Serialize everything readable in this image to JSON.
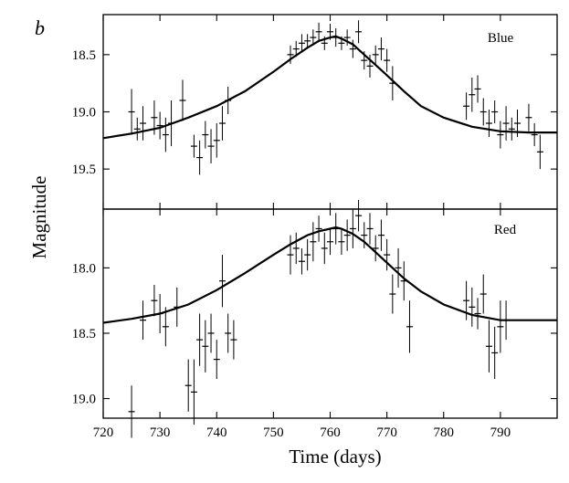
{
  "figure": {
    "panel_letter": "b",
    "ylabel": "Magnitude",
    "xlabel": "Time (days)"
  },
  "chart_data": [
    {
      "type": "scatter",
      "series_label": "Blue",
      "xlim": [
        720,
        800
      ],
      "ylim": [
        19.85,
        18.15
      ],
      "y_inverted": true,
      "x_ticks": [
        720,
        730,
        740,
        750,
        760,
        770,
        780,
        790
      ],
      "x_tick_labels": [
        "720",
        "730",
        "740",
        "750",
        "760",
        "770",
        "780",
        "790"
      ],
      "y_ticks": [
        18.5,
        19.0,
        19.5
      ],
      "y_tick_labels": [
        "18.5",
        "19.0",
        "19.5"
      ],
      "fit_curve": {
        "x": [
          720,
          725,
          730,
          735,
          740,
          745,
          750,
          753,
          756,
          758,
          760,
          761,
          762,
          764,
          766,
          768,
          770,
          773,
          776,
          780,
          785,
          790,
          795,
          800
        ],
        "y": [
          19.23,
          19.19,
          19.14,
          19.05,
          18.95,
          18.82,
          18.65,
          18.54,
          18.44,
          18.38,
          18.35,
          18.34,
          18.36,
          18.41,
          18.5,
          18.59,
          18.68,
          18.82,
          18.95,
          19.05,
          19.13,
          19.17,
          19.18,
          19.18
        ]
      },
      "points": [
        {
          "x": 725,
          "y": 19.0,
          "err": 0.2
        },
        {
          "x": 726,
          "y": 19.15,
          "err": 0.1
        },
        {
          "x": 727,
          "y": 19.1,
          "err": 0.15
        },
        {
          "x": 729,
          "y": 19.05,
          "err": 0.15
        },
        {
          "x": 730,
          "y": 19.12,
          "err": 0.12
        },
        {
          "x": 731,
          "y": 19.2,
          "err": 0.15
        },
        {
          "x": 732,
          "y": 19.1,
          "err": 0.2
        },
        {
          "x": 734,
          "y": 18.9,
          "err": 0.18
        },
        {
          "x": 736,
          "y": 19.3,
          "err": 0.1
        },
        {
          "x": 737,
          "y": 19.4,
          "err": 0.15
        },
        {
          "x": 738,
          "y": 19.2,
          "err": 0.12
        },
        {
          "x": 739,
          "y": 19.3,
          "err": 0.15
        },
        {
          "x": 740,
          "y": 19.25,
          "err": 0.15
        },
        {
          "x": 741,
          "y": 19.1,
          "err": 0.15
        },
        {
          "x": 742,
          "y": 18.9,
          "err": 0.12
        },
        {
          "x": 753,
          "y": 18.5,
          "err": 0.08
        },
        {
          "x": 754,
          "y": 18.45,
          "err": 0.07
        },
        {
          "x": 755,
          "y": 18.4,
          "err": 0.08
        },
        {
          "x": 756,
          "y": 18.38,
          "err": 0.06
        },
        {
          "x": 757,
          "y": 18.35,
          "err": 0.07
        },
        {
          "x": 758,
          "y": 18.3,
          "err": 0.08
        },
        {
          "x": 759,
          "y": 18.4,
          "err": 0.06
        },
        {
          "x": 760,
          "y": 18.3,
          "err": 0.07
        },
        {
          "x": 761,
          "y": 18.35,
          "err": 0.08
        },
        {
          "x": 762,
          "y": 18.4,
          "err": 0.06
        },
        {
          "x": 763,
          "y": 18.35,
          "err": 0.07
        },
        {
          "x": 764,
          "y": 18.45,
          "err": 0.08
        },
        {
          "x": 765,
          "y": 18.3,
          "err": 0.1
        },
        {
          "x": 766,
          "y": 18.55,
          "err": 0.08
        },
        {
          "x": 767,
          "y": 18.6,
          "err": 0.1
        },
        {
          "x": 768,
          "y": 18.5,
          "err": 0.08
        },
        {
          "x": 769,
          "y": 18.45,
          "err": 0.1
        },
        {
          "x": 770,
          "y": 18.55,
          "err": 0.1
        },
        {
          "x": 771,
          "y": 18.75,
          "err": 0.15
        },
        {
          "x": 784,
          "y": 18.95,
          "err": 0.12
        },
        {
          "x": 785,
          "y": 18.85,
          "err": 0.15
        },
        {
          "x": 786,
          "y": 18.8,
          "err": 0.12
        },
        {
          "x": 787,
          "y": 19.0,
          "err": 0.12
        },
        {
          "x": 788,
          "y": 19.1,
          "err": 0.12
        },
        {
          "x": 789,
          "y": 19.0,
          "err": 0.1
        },
        {
          "x": 790,
          "y": 19.2,
          "err": 0.12
        },
        {
          "x": 791,
          "y": 19.1,
          "err": 0.15
        },
        {
          "x": 792,
          "y": 19.15,
          "err": 0.1
        },
        {
          "x": 793,
          "y": 19.1,
          "err": 0.12
        },
        {
          "x": 795,
          "y": 19.05,
          "err": 0.12
        },
        {
          "x": 796,
          "y": 19.2,
          "err": 0.1
        },
        {
          "x": 797,
          "y": 19.35,
          "err": 0.15
        }
      ]
    },
    {
      "type": "scatter",
      "series_label": "Red",
      "xlim": [
        720,
        800
      ],
      "ylim": [
        19.15,
        17.55
      ],
      "y_inverted": true,
      "x_ticks": [
        720,
        730,
        740,
        750,
        760,
        770,
        780,
        790
      ],
      "x_tick_labels": [
        "720",
        "730",
        "740",
        "750",
        "760",
        "770",
        "780",
        "790"
      ],
      "y_ticks": [
        18.0,
        18.5,
        19.0
      ],
      "y_tick_labels": [
        "18.0",
        "18.5",
        "19.0"
      ],
      "fit_curve": {
        "x": [
          720,
          725,
          730,
          735,
          740,
          745,
          750,
          753,
          756,
          758,
          760,
          761,
          762,
          764,
          766,
          768,
          770,
          773,
          776,
          780,
          785,
          790,
          795,
          800
        ],
        "y": [
          18.42,
          18.39,
          18.35,
          18.28,
          18.17,
          18.04,
          17.9,
          17.82,
          17.75,
          17.72,
          17.7,
          17.69,
          17.7,
          17.74,
          17.8,
          17.88,
          17.96,
          18.08,
          18.18,
          18.28,
          18.36,
          18.4,
          18.4,
          18.4
        ]
      },
      "points": [
        {
          "x": 725,
          "y": 19.1,
          "err": 0.2
        },
        {
          "x": 727,
          "y": 18.4,
          "err": 0.15
        },
        {
          "x": 729,
          "y": 18.25,
          "err": 0.12
        },
        {
          "x": 730,
          "y": 18.35,
          "err": 0.15
        },
        {
          "x": 731,
          "y": 18.45,
          "err": 0.15
        },
        {
          "x": 733,
          "y": 18.3,
          "err": 0.15
        },
        {
          "x": 735,
          "y": 18.9,
          "err": 0.2
        },
        {
          "x": 736,
          "y": 18.95,
          "err": 0.25
        },
        {
          "x": 737,
          "y": 18.55,
          "err": 0.2
        },
        {
          "x": 738,
          "y": 18.6,
          "err": 0.2
        },
        {
          "x": 739,
          "y": 18.5,
          "err": 0.15
        },
        {
          "x": 740,
          "y": 18.7,
          "err": 0.15
        },
        {
          "x": 741,
          "y": 18.1,
          "err": 0.2
        },
        {
          "x": 742,
          "y": 18.5,
          "err": 0.15
        },
        {
          "x": 743,
          "y": 18.55,
          "err": 0.15
        },
        {
          "x": 753,
          "y": 17.9,
          "err": 0.15
        },
        {
          "x": 754,
          "y": 17.85,
          "err": 0.12
        },
        {
          "x": 755,
          "y": 17.95,
          "err": 0.1
        },
        {
          "x": 756,
          "y": 17.9,
          "err": 0.12
        },
        {
          "x": 757,
          "y": 17.8,
          "err": 0.15
        },
        {
          "x": 758,
          "y": 17.7,
          "err": 0.1
        },
        {
          "x": 759,
          "y": 17.85,
          "err": 0.12
        },
        {
          "x": 760,
          "y": 17.8,
          "err": 0.1
        },
        {
          "x": 761,
          "y": 17.7,
          "err": 0.12
        },
        {
          "x": 762,
          "y": 17.8,
          "err": 0.1
        },
        {
          "x": 763,
          "y": 17.75,
          "err": 0.12
        },
        {
          "x": 764,
          "y": 17.7,
          "err": 0.15
        },
        {
          "x": 765,
          "y": 17.6,
          "err": 0.12
        },
        {
          "x": 766,
          "y": 17.75,
          "err": 0.1
        },
        {
          "x": 767,
          "y": 17.7,
          "err": 0.12
        },
        {
          "x": 768,
          "y": 17.85,
          "err": 0.1
        },
        {
          "x": 769,
          "y": 17.75,
          "err": 0.12
        },
        {
          "x": 770,
          "y": 17.9,
          "err": 0.12
        },
        {
          "x": 771,
          "y": 18.2,
          "err": 0.15
        },
        {
          "x": 772,
          "y": 18.0,
          "err": 0.15
        },
        {
          "x": 773,
          "y": 18.1,
          "err": 0.15
        },
        {
          "x": 774,
          "y": 18.45,
          "err": 0.2
        },
        {
          "x": 784,
          "y": 18.25,
          "err": 0.15
        },
        {
          "x": 785,
          "y": 18.3,
          "err": 0.15
        },
        {
          "x": 786,
          "y": 18.35,
          "err": 0.12
        },
        {
          "x": 787,
          "y": 18.2,
          "err": 0.15
        },
        {
          "x": 788,
          "y": 18.6,
          "err": 0.2
        },
        {
          "x": 789,
          "y": 18.65,
          "err": 0.2
        },
        {
          "x": 790,
          "y": 18.45,
          "err": 0.2
        },
        {
          "x": 791,
          "y": 18.4,
          "err": 0.15
        }
      ]
    }
  ]
}
